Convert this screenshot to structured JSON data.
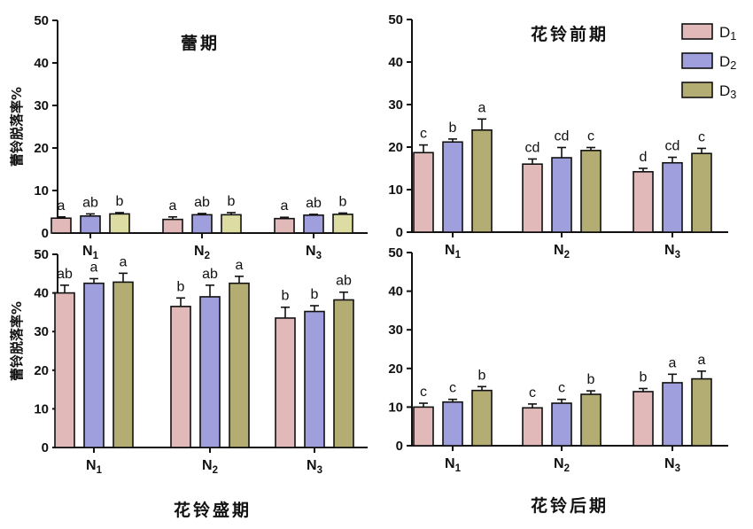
{
  "colors": {
    "D1": "#e2b9b9",
    "D2": "#9e9fdc",
    "D3": "#b3ad74",
    "D3_light": "#dcdca3"
  },
  "legend": [
    {
      "key": "D1",
      "base": "D",
      "sub": "1"
    },
    {
      "key": "D2",
      "base": "D",
      "sub": "2"
    },
    {
      "key": "D3",
      "base": "D",
      "sub": "3"
    }
  ],
  "ylabel": "蕾铃脱落率%",
  "chart_data": [
    {
      "id": "bud",
      "type": "bar",
      "title": "蕾期",
      "categories": [
        {
          "base": "N",
          "sub": "1"
        },
        {
          "base": "N",
          "sub": "2"
        },
        {
          "base": "N",
          "sub": "3"
        }
      ],
      "ylim": [
        0,
        50
      ],
      "yticks": [
        0,
        10,
        20,
        30,
        40,
        50
      ],
      "series": [
        {
          "name": "D1",
          "values": [
            3.5,
            3.2,
            3.4
          ],
          "errors": [
            0.3,
            0.6,
            0.3
          ],
          "labels": [
            "a",
            "a",
            "a"
          ]
        },
        {
          "name": "D2",
          "values": [
            4.0,
            4.3,
            4.2
          ],
          "errors": [
            0.5,
            0.3,
            0.2
          ],
          "labels": [
            "ab",
            "ab",
            "ab"
          ]
        },
        {
          "name": "D3",
          "values": [
            4.5,
            4.3,
            4.4
          ],
          "errors": [
            0.3,
            0.5,
            0.3
          ],
          "labels": [
            "b",
            "b",
            "b"
          ]
        }
      ]
    },
    {
      "id": "early",
      "type": "bar",
      "title": "花铃前期",
      "categories": [
        {
          "base": "N",
          "sub": "1"
        },
        {
          "base": "N",
          "sub": "2"
        },
        {
          "base": "N",
          "sub": "3"
        }
      ],
      "ylim": [
        0,
        50
      ],
      "yticks": [
        0,
        10,
        20,
        30,
        40,
        50
      ],
      "series": [
        {
          "name": "D1",
          "values": [
            18.7,
            16.0,
            14.2
          ],
          "errors": [
            1.8,
            1.2,
            0.8
          ],
          "labels": [
            "c",
            "cd",
            "d"
          ]
        },
        {
          "name": "D2",
          "values": [
            21.2,
            17.5,
            16.3
          ],
          "errors": [
            0.7,
            2.4,
            1.3
          ],
          "labels": [
            "b",
            "cd",
            "cd"
          ]
        },
        {
          "name": "D3",
          "values": [
            24.0,
            19.2,
            18.5
          ],
          "errors": [
            2.6,
            0.7,
            1.2
          ],
          "labels": [
            "a",
            "c",
            "c"
          ]
        }
      ]
    },
    {
      "id": "full",
      "type": "bar",
      "title": "花铃盛期",
      "categories": [
        {
          "base": "N",
          "sub": "1"
        },
        {
          "base": "N",
          "sub": "2"
        },
        {
          "base": "N",
          "sub": "3"
        }
      ],
      "ylim": [
        0,
        50
      ],
      "yticks": [
        0,
        10,
        20,
        30,
        40,
        50
      ],
      "series": [
        {
          "name": "D1",
          "values": [
            40.0,
            36.5,
            33.5
          ],
          "errors": [
            2.0,
            2.2,
            2.8
          ],
          "labels": [
            "ab",
            "b",
            "b"
          ]
        },
        {
          "name": "D2",
          "values": [
            42.5,
            39.0,
            35.2
          ],
          "errors": [
            1.2,
            3.0,
            1.5
          ],
          "labels": [
            "a",
            "ab",
            "b"
          ]
        },
        {
          "name": "D3",
          "values": [
            42.8,
            42.5,
            38.2
          ],
          "errors": [
            2.3,
            1.8,
            2.0
          ],
          "labels": [
            "a",
            "a",
            "ab"
          ]
        }
      ]
    },
    {
      "id": "late",
      "type": "bar",
      "title": "花铃后期",
      "categories": [
        {
          "base": "N",
          "sub": "1"
        },
        {
          "base": "N",
          "sub": "2"
        },
        {
          "base": "N",
          "sub": "3"
        }
      ],
      "ylim": [
        0,
        50
      ],
      "yticks": [
        0,
        10,
        20,
        30,
        40,
        50
      ],
      "series": [
        {
          "name": "D1",
          "values": [
            10.0,
            9.8,
            14.0
          ],
          "errors": [
            1.0,
            1.0,
            0.8
          ],
          "labels": [
            "c",
            "c",
            "b"
          ]
        },
        {
          "name": "D2",
          "values": [
            11.3,
            11.0,
            16.3
          ],
          "errors": [
            0.7,
            1.0,
            2.2
          ],
          "labels": [
            "c",
            "c",
            "a"
          ]
        },
        {
          "name": "D3",
          "values": [
            14.3,
            13.3,
            17.3
          ],
          "errors": [
            1.0,
            0.9,
            2.0
          ],
          "labels": [
            "b",
            "b",
            "a"
          ]
        }
      ]
    }
  ]
}
